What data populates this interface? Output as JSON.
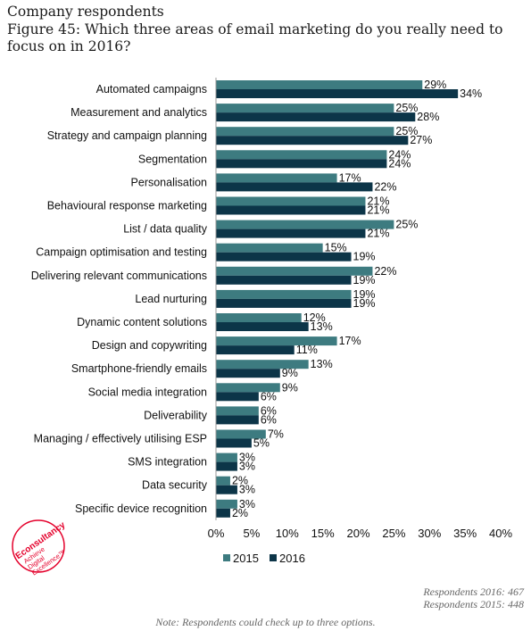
{
  "header": {
    "line1": "Company respondents",
    "line2": "Figure 45: Which three areas of email marketing do you really need to focus on in 2016?"
  },
  "colors": {
    "s2015": "#3d7b80",
    "s2016": "#0c3548",
    "logo": "#e4002b"
  },
  "chart_data": {
    "type": "bar",
    "orientation": "horizontal",
    "categories": [
      "Automated campaigns",
      "Measurement and analytics",
      "Strategy and campaign planning",
      "Segmentation",
      "Personalisation",
      "Behavioural response marketing",
      "List / data quality",
      "Campaign optimisation and testing",
      "Delivering relevant communications",
      "Lead nurturing",
      "Dynamic content solutions",
      "Design and copywriting",
      "Smartphone-friendly emails",
      "Social media integration",
      "Deliverability",
      "Managing / effectively utilising ESP",
      "SMS integration",
      "Data security",
      "Specific device recognition"
    ],
    "series": [
      {
        "name": "2015",
        "values": [
          29,
          25,
          25,
          24,
          17,
          21,
          25,
          15,
          22,
          19,
          12,
          17,
          13,
          9,
          6,
          7,
          3,
          2,
          3
        ]
      },
      {
        "name": "2016",
        "values": [
          34,
          28,
          27,
          24,
          22,
          21,
          21,
          19,
          19,
          19,
          13,
          11,
          9,
          6,
          6,
          5,
          3,
          3,
          2
        ]
      }
    ],
    "xlim": [
      0,
      40
    ],
    "xticks": [
      "0%",
      "5%",
      "10%",
      "15%",
      "20%",
      "25%",
      "30%",
      "35%",
      "40%"
    ],
    "legend": "bottom",
    "value_suffix": "%"
  },
  "notes": {
    "respondents_2016": "Respondents 2016: 467",
    "respondents_2015": "Respondents 2015: 448",
    "footnote": "Note: Respondents could check up to three options."
  },
  "logo": {
    "brand": "Econsultancy",
    "tagline1": "Achieve",
    "tagline2": "Digital",
    "tagline3": "Excellence™"
  }
}
